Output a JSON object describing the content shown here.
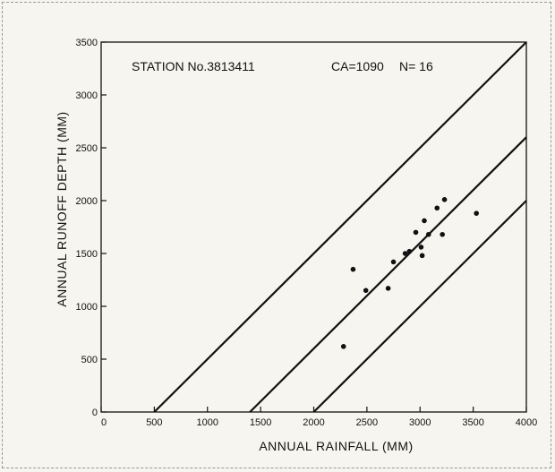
{
  "chart_data": {
    "type": "scatter",
    "title": "",
    "annotations": [
      "STATION No.3813411",
      "CA=1090",
      "N= 16"
    ],
    "xlabel": "ANNUAL  RAINFALL  (MM)",
    "ylabel": "ANNUAL  RUNOFF  DEPTH  (MM)",
    "xlim": [
      0,
      4000
    ],
    "ylim": [
      0,
      3500
    ],
    "x_ticks": [
      0,
      500,
      1000,
      1500,
      2000,
      2500,
      3000,
      3500,
      4000
    ],
    "y_ticks": [
      0,
      500,
      1000,
      1500,
      2000,
      2500,
      3000,
      3500
    ],
    "grid": false,
    "legend": "none",
    "series": [
      {
        "values": [
          {
            "x": 2280,
            "y": 620
          },
          {
            "x": 2370,
            "y": 1350
          },
          {
            "x": 2490,
            "y": 1150
          },
          {
            "x": 2700,
            "y": 1170
          },
          {
            "x": 2750,
            "y": 1420
          },
          {
            "x": 2860,
            "y": 1500
          },
          {
            "x": 2900,
            "y": 1520
          },
          {
            "x": 2960,
            "y": 1700
          },
          {
            "x": 3010,
            "y": 1560
          },
          {
            "x": 3020,
            "y": 1480
          },
          {
            "x": 3040,
            "y": 1810
          },
          {
            "x": 3080,
            "y": 1680
          },
          {
            "x": 3160,
            "y": 1930
          },
          {
            "x": 3210,
            "y": 1680
          },
          {
            "x": 3230,
            "y": 2010
          },
          {
            "x": 3530,
            "y": 1880
          }
        ]
      }
    ],
    "lines": [
      {
        "style": "solid",
        "x": [
          500,
          4000
        ],
        "y": [
          0,
          3500
        ]
      },
      {
        "style": "solid",
        "x": [
          1400,
          4000
        ],
        "y": [
          0,
          2600
        ]
      },
      {
        "style": "solid",
        "x": [
          2000,
          4000
        ],
        "y": [
          0,
          2000
        ]
      }
    ]
  }
}
